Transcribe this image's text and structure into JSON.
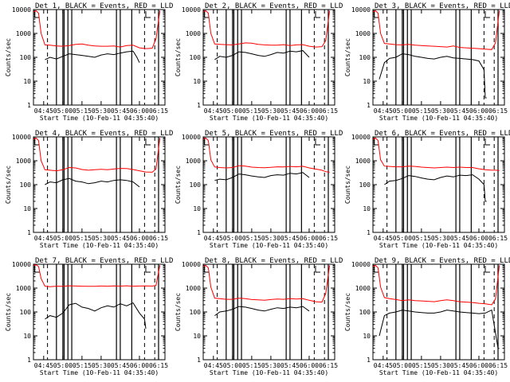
{
  "chart_data": {
    "type": "line",
    "layout": "3x3 grid",
    "yscale": "log",
    "ylim": [
      1,
      10000
    ],
    "xlim": [
      "04:37",
      "06:20"
    ],
    "x_ticks": [
      "04:45",
      "05:00",
      "05:15",
      "05:30",
      "05:45",
      "06:00",
      "06:15"
    ],
    "y_ticks": [
      "1",
      "10",
      "100",
      "1000",
      "10000"
    ],
    "ylabel": "Counts/sec",
    "xlabel": "Start Time (10-Feb-11 04:35:40)",
    "series_colors": {
      "Events": "#000000",
      "LLD": "#ff0000"
    },
    "panels": [
      {
        "title": "Det 1, BLACK = Events, RED = LLD",
        "events_x": [
          "04:38",
          "04:41",
          "04:43",
          "04:46",
          "04:50",
          "04:55",
          "05:00",
          "05:05",
          "05:10",
          "05:15",
          "05:20",
          "05:25",
          "05:30",
          "05:35",
          "05:40",
          "05:45",
          "05:50",
          "05:55",
          "05:58",
          "06:00"
        ],
        "events_y": [
          null,
          null,
          null,
          80,
          100,
          85,
          110,
          140,
          130,
          120,
          110,
          100,
          125,
          140,
          130,
          150,
          170,
          180,
          100,
          60
        ],
        "lld_x": [
          "04:37",
          "04:39",
          "04:41",
          "04:43",
          "04:46",
          "04:50",
          "04:55",
          "05:00",
          "05:05",
          "05:10",
          "05:15",
          "05:20",
          "05:25",
          "05:30",
          "05:35",
          "05:40",
          "05:45",
          "05:50",
          "05:55",
          "06:00",
          "06:05",
          "06:10",
          "06:13",
          "06:16"
        ],
        "lld_y": [
          8000,
          9000,
          7000,
          1000,
          330,
          320,
          300,
          290,
          310,
          350,
          360,
          320,
          300,
          290,
          290,
          300,
          270,
          310,
          320,
          250,
          230,
          240,
          600,
          9000
        ],
        "flag_lines": [
          "04:48",
          "04:55",
          "05:00",
          "05:01",
          "05:04",
          "05:07",
          "05:42",
          "05:45",
          "05:54",
          "06:04",
          "06:12",
          "06:15"
        ],
        "sat_marks": [
          "04:38",
          "06:05"
        ]
      },
      {
        "title": "Det 2, BLACK = Events, RED = LLD",
        "events_x": [
          "04:46",
          "04:50",
          "04:55",
          "05:00",
          "05:05",
          "05:10",
          "05:15",
          "05:20",
          "05:25",
          "05:30",
          "05:35",
          "05:40",
          "05:45",
          "05:50",
          "05:55",
          "06:00"
        ],
        "events_y": [
          80,
          110,
          100,
          120,
          170,
          160,
          140,
          120,
          110,
          130,
          160,
          150,
          180,
          170,
          190,
          100
        ],
        "lld_x": [
          "04:37",
          "04:39",
          "04:41",
          "04:43",
          "04:46",
          "04:50",
          "04:55",
          "05:00",
          "05:05",
          "05:10",
          "05:15",
          "05:20",
          "05:25",
          "05:30",
          "05:35",
          "05:40",
          "05:45",
          "05:50",
          "05:55",
          "06:00",
          "06:05",
          "06:10",
          "06:13",
          "06:16"
        ],
        "lld_y": [
          8000,
          9000,
          7000,
          1000,
          360,
          350,
          340,
          330,
          360,
          400,
          390,
          350,
          330,
          320,
          320,
          340,
          310,
          330,
          340,
          290,
          270,
          280,
          500,
          9000
        ],
        "flag_lines": [
          "04:48",
          "04:55",
          "05:00",
          "05:01",
          "05:04",
          "05:07",
          "05:42",
          "05:45",
          "05:54",
          "06:04",
          "06:12",
          "06:15"
        ],
        "sat_marks": [
          "04:38",
          "06:05"
        ]
      },
      {
        "title": "Det 3, BLACK = Events, RED = LLD",
        "events_x": [
          "04:42",
          "04:46",
          "04:50",
          "04:55",
          "05:00",
          "05:05",
          "05:10",
          "05:15",
          "05:20",
          "05:25",
          "05:30",
          "05:35",
          "05:40",
          "05:45",
          "05:50",
          "05:55",
          "06:00",
          "06:04",
          "06:05",
          "06:06"
        ],
        "events_y": [
          12,
          60,
          90,
          100,
          140,
          130,
          110,
          100,
          90,
          85,
          100,
          110,
          95,
          90,
          85,
          80,
          70,
          30,
          2,
          2
        ],
        "lld_x": [
          "04:37",
          "04:39",
          "04:41",
          "04:43",
          "04:46",
          "04:50",
          "04:55",
          "05:00",
          "05:05",
          "05:10",
          "05:15",
          "05:20",
          "05:25",
          "05:30",
          "05:35",
          "05:40",
          "05:45",
          "05:50",
          "05:55",
          "06:00",
          "06:05",
          "06:10",
          "06:13",
          "06:16"
        ],
        "lld_y": [
          8000,
          9000,
          7000,
          1000,
          380,
          360,
          340,
          330,
          350,
          320,
          310,
          300,
          290,
          280,
          270,
          300,
          260,
          250,
          240,
          230,
          220,
          210,
          400,
          9000
        ],
        "flag_lines": [
          "04:48",
          "04:55",
          "05:00",
          "05:01",
          "05:04",
          "05:07",
          "05:42",
          "05:45",
          "05:54",
          "06:04",
          "06:12",
          "06:15"
        ],
        "sat_marks": [
          "04:38",
          "06:05"
        ]
      },
      {
        "title": "Det 4, BLACK = Events, RED = LLD",
        "events_x": [
          "04:46",
          "04:50",
          "04:55",
          "05:00",
          "05:05",
          "05:10",
          "05:15",
          "05:20",
          "05:25",
          "05:30",
          "05:35",
          "05:40",
          "05:45",
          "05:50",
          "05:55",
          "06:00"
        ],
        "events_y": [
          100,
          130,
          120,
          160,
          180,
          140,
          130,
          110,
          120,
          140,
          130,
          150,
          160,
          150,
          130,
          80
        ],
        "lld_x": [
          "04:37",
          "04:39",
          "04:41",
          "04:43",
          "04:46",
          "04:50",
          "04:55",
          "05:00",
          "05:05",
          "05:10",
          "05:15",
          "05:20",
          "05:25",
          "05:30",
          "05:35",
          "05:40",
          "05:45",
          "05:50",
          "05:55",
          "06:00",
          "06:05",
          "06:10",
          "06:13",
          "06:16"
        ],
        "lld_y": [
          8000,
          9000,
          7000,
          1000,
          420,
          400,
          380,
          420,
          520,
          500,
          430,
          400,
          420,
          440,
          420,
          450,
          480,
          470,
          430,
          380,
          340,
          330,
          450,
          9000
        ],
        "flag_lines": [
          "04:48",
          "04:55",
          "05:00",
          "05:01",
          "05:04",
          "05:07",
          "05:42",
          "05:45",
          "05:54",
          "06:04",
          "06:12",
          "06:15"
        ],
        "sat_marks": [
          "04:38",
          "06:05"
        ]
      },
      {
        "title": "Det 5, BLACK = Events, RED = LLD",
        "events_x": [
          "04:46",
          "04:50",
          "04:55",
          "05:00",
          "05:05",
          "05:10",
          "05:15",
          "05:20",
          "05:25",
          "05:30",
          "05:35",
          "05:40",
          "05:45",
          "05:50",
          "05:55",
          "06:00"
        ],
        "events_y": [
          150,
          170,
          160,
          200,
          280,
          260,
          230,
          210,
          200,
          240,
          260,
          250,
          300,
          280,
          320,
          200
        ],
        "lld_x": [
          "04:37",
          "04:39",
          "04:41",
          "04:43",
          "04:46",
          "04:50",
          "04:55",
          "05:00",
          "05:05",
          "05:10",
          "05:15",
          "05:20",
          "05:25",
          "05:30",
          "05:35",
          "05:40",
          "05:45",
          "05:50",
          "05:55",
          "06:00",
          "06:05",
          "06:10",
          "06:13",
          "06:16"
        ],
        "lld_y": [
          8000,
          9000,
          7000,
          1100,
          550,
          520,
          500,
          520,
          620,
          600,
          540,
          520,
          510,
          530,
          560,
          550,
          580,
          560,
          590,
          500,
          450,
          400,
          350,
          330
        ],
        "flag_lines": [
          "04:48",
          "04:55",
          "05:00",
          "05:01",
          "05:04",
          "05:07",
          "05:42",
          "05:45",
          "05:54",
          "06:04",
          "06:12",
          "06:15"
        ],
        "sat_marks": [
          "04:38",
          "06:05"
        ]
      },
      {
        "title": "Det 6, BLACK = Events, RED = LLD",
        "events_x": [
          "04:46",
          "04:50",
          "04:55",
          "05:00",
          "05:05",
          "05:10",
          "05:15",
          "05:20",
          "05:25",
          "05:30",
          "05:35",
          "05:40",
          "05:45",
          "05:50",
          "05:55",
          "06:00",
          "06:04",
          "06:05",
          "06:06"
        ],
        "events_y": [
          100,
          140,
          150,
          180,
          240,
          220,
          190,
          170,
          160,
          200,
          230,
          210,
          250,
          240,
          260,
          170,
          100,
          20,
          20
        ],
        "lld_x": [
          "04:37",
          "04:39",
          "04:41",
          "04:43",
          "04:46",
          "04:50",
          "04:55",
          "05:00",
          "05:05",
          "05:10",
          "05:15",
          "05:20",
          "05:25",
          "05:30",
          "05:35",
          "05:40",
          "05:45",
          "05:50",
          "05:55",
          "06:00",
          "06:05",
          "06:10",
          "06:13",
          "06:16"
        ],
        "lld_y": [
          8000,
          9000,
          7000,
          1100,
          600,
          580,
          560,
          560,
          600,
          580,
          540,
          520,
          500,
          520,
          540,
          520,
          540,
          520,
          520,
          460,
          420,
          400,
          400,
          390
        ],
        "flag_lines": [
          "04:48",
          "04:55",
          "05:00",
          "05:01",
          "05:04",
          "05:07",
          "05:42",
          "05:45",
          "05:54",
          "06:04",
          "06:12",
          "06:15"
        ],
        "sat_marks": [
          "04:38",
          "06:05"
        ]
      },
      {
        "title": "Det 7, BLACK = Events, RED = LLD",
        "events_x": [
          "04:46",
          "04:50",
          "04:55",
          "05:00",
          "05:05",
          "05:10",
          "05:15",
          "05:20",
          "05:25",
          "05:30",
          "05:35",
          "05:40",
          "05:45",
          "05:50",
          "05:55",
          "06:00",
          "06:04",
          "06:05"
        ],
        "events_y": [
          50,
          70,
          60,
          90,
          200,
          230,
          160,
          140,
          110,
          150,
          180,
          160,
          220,
          180,
          240,
          90,
          50,
          20
        ],
        "lld_x": [
          "04:37",
          "04:39",
          "04:41",
          "04:43",
          "04:46",
          "04:50",
          "04:55",
          "05:00",
          "05:05",
          "05:10",
          "05:15",
          "05:20",
          "05:25",
          "05:30",
          "05:35",
          "05:40",
          "05:45",
          "05:50",
          "05:55",
          "06:00",
          "06:05",
          "06:10",
          "06:13",
          "06:16"
        ],
        "lld_y": [
          9000,
          9500,
          8000,
          2500,
          1200,
          1150,
          1200,
          1180,
          1250,
          1220,
          1200,
          1180,
          1190,
          1220,
          1200,
          1230,
          1210,
          1250,
          1200,
          1220,
          1230,
          1210,
          1300,
          9000
        ],
        "flag_lines": [
          "04:48",
          "04:55",
          "05:00",
          "05:01",
          "05:04",
          "05:07",
          "05:42",
          "05:45",
          "05:54",
          "06:04",
          "06:12",
          "06:15"
        ],
        "sat_marks": [
          "04:38",
          "06:05"
        ]
      },
      {
        "title": "Det 8, BLACK = Events, RED = LLD",
        "events_x": [
          "04:46",
          "04:50",
          "04:55",
          "05:00",
          "05:05",
          "05:10",
          "05:15",
          "05:20",
          "05:25",
          "05:30",
          "05:35",
          "05:40",
          "05:45",
          "05:50",
          "05:55",
          "06:00"
        ],
        "events_y": [
          70,
          100,
          110,
          130,
          170,
          160,
          140,
          120,
          110,
          130,
          150,
          140,
          160,
          150,
          170,
          110
        ],
        "lld_x": [
          "04:37",
          "04:39",
          "04:41",
          "04:43",
          "04:46",
          "04:50",
          "04:55",
          "05:00",
          "05:05",
          "05:10",
          "05:15",
          "05:20",
          "05:25",
          "05:30",
          "05:35",
          "05:40",
          "05:45",
          "05:50",
          "05:55",
          "06:00",
          "06:05",
          "06:10",
          "06:13",
          "06:16"
        ],
        "lld_y": [
          8000,
          9000,
          7000,
          1100,
          380,
          360,
          340,
          340,
          380,
          360,
          330,
          320,
          310,
          330,
          350,
          340,
          360,
          350,
          360,
          310,
          270,
          260,
          600,
          9000
        ],
        "flag_lines": [
          "04:48",
          "04:55",
          "05:00",
          "05:01",
          "05:04",
          "05:07",
          "05:42",
          "05:45",
          "05:54",
          "06:04",
          "06:12",
          "06:15"
        ],
        "sat_marks": [
          "04:38",
          "06:05"
        ]
      },
      {
        "title": "Det 9, BLACK = Events, RED = LLD",
        "events_x": [
          "04:42",
          "04:46",
          "04:50",
          "04:55",
          "05:00",
          "05:05",
          "05:10",
          "05:15",
          "05:20",
          "05:25",
          "05:30",
          "05:35",
          "05:40",
          "05:45",
          "05:50",
          "05:55",
          "06:00",
          "06:05",
          "06:10",
          "06:15",
          "06:16"
        ],
        "events_y": [
          10,
          70,
          90,
          100,
          120,
          110,
          100,
          95,
          90,
          90,
          100,
          120,
          110,
          100,
          95,
          90,
          85,
          90,
          120,
          3,
          3
        ],
        "lld_x": [
          "04:37",
          "04:39",
          "04:41",
          "04:43",
          "04:46",
          "04:50",
          "04:55",
          "05:00",
          "05:05",
          "05:10",
          "05:15",
          "05:20",
          "05:25",
          "05:30",
          "05:35",
          "05:40",
          "05:45",
          "05:50",
          "05:55",
          "06:00",
          "06:05",
          "06:10",
          "06:13",
          "06:16"
        ],
        "lld_y": [
          8000,
          9000,
          7000,
          1100,
          400,
          360,
          330,
          300,
          320,
          300,
          290,
          280,
          270,
          300,
          320,
          300,
          270,
          260,
          250,
          230,
          220,
          200,
          350,
          9000
        ],
        "flag_lines": [
          "04:48",
          "04:55",
          "05:00",
          "05:01",
          "05:04",
          "05:07",
          "05:42",
          "05:45",
          "05:54",
          "06:04",
          "06:12",
          "06:15"
        ],
        "sat_marks": [
          "04:38",
          "06:05"
        ]
      }
    ]
  }
}
